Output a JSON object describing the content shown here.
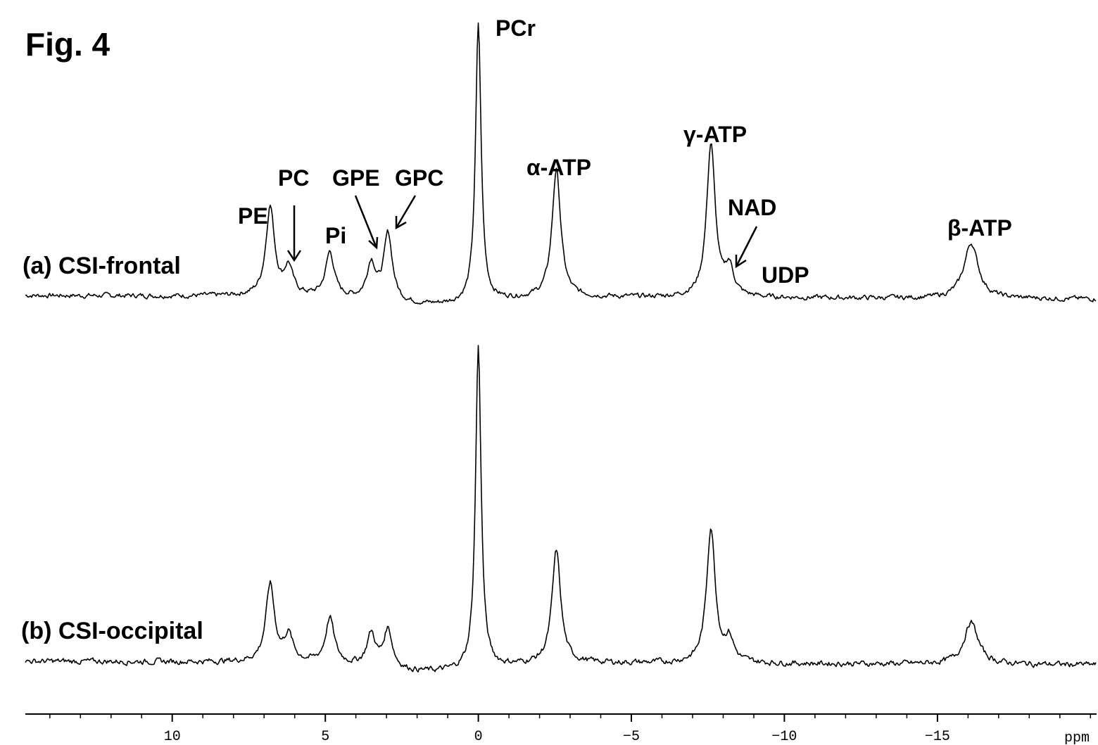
{
  "figure_label": "Fig. 4",
  "chart_data": {
    "type": "line",
    "title": "",
    "xlabel": "",
    "ylabel": "",
    "x_unit": "ppm",
    "x_reversed": true,
    "xlim": [
      14.8,
      -20.2
    ],
    "x_ticks": [
      10,
      5,
      0,
      -5,
      -10,
      -15
    ],
    "x_tick_labels": [
      "10",
      "5",
      "0",
      "−5",
      "−10",
      "−15"
    ],
    "series": [
      {
        "name": "(a) CSI-frontal",
        "peaks": [
          {
            "ppm": 6.8,
            "height": 0.32
          },
          {
            "ppm": 6.2,
            "height": 0.1
          },
          {
            "ppm": 4.85,
            "height": 0.16
          },
          {
            "ppm": 3.5,
            "height": 0.13
          },
          {
            "ppm": 2.95,
            "height": 0.24
          },
          {
            "ppm": 0.0,
            "height": 1.0
          },
          {
            "ppm": -2.55,
            "height": 0.46
          },
          {
            "ppm": -7.6,
            "height": 0.55
          },
          {
            "ppm": -8.2,
            "height": 0.1
          },
          {
            "ppm": -16.1,
            "height": 0.2
          }
        ]
      },
      {
        "name": "(b) CSI-occipital",
        "peaks": [
          {
            "ppm": 6.8,
            "height": 0.24
          },
          {
            "ppm": 6.2,
            "height": 0.08
          },
          {
            "ppm": 4.85,
            "height": 0.14
          },
          {
            "ppm": 3.5,
            "height": 0.1
          },
          {
            "ppm": 2.95,
            "height": 0.12
          },
          {
            "ppm": 0.0,
            "height": 1.0
          },
          {
            "ppm": -2.55,
            "height": 0.35
          },
          {
            "ppm": -7.6,
            "height": 0.42
          },
          {
            "ppm": -8.2,
            "height": 0.07
          },
          {
            "ppm": -16.1,
            "height": 0.13
          }
        ]
      }
    ],
    "annotations": [
      {
        "text": "PE",
        "ppm": 6.8
      },
      {
        "text": "PC",
        "ppm": 6.2
      },
      {
        "text": "Pi",
        "ppm": 4.85
      },
      {
        "text": "GPE",
        "ppm": 3.5
      },
      {
        "text": "GPC",
        "ppm": 2.95
      },
      {
        "text": "PCr",
        "ppm": 0.0
      },
      {
        "text": "α-ATP",
        "ppm": -2.55
      },
      {
        "text": "γ-ATP",
        "ppm": -7.6
      },
      {
        "text": "NAD",
        "ppm": -8.2
      },
      {
        "text": "UDP",
        "ppm": -9.5
      },
      {
        "text": "β-ATP",
        "ppm": -16.1
      }
    ],
    "grid": false,
    "legend": "none"
  }
}
